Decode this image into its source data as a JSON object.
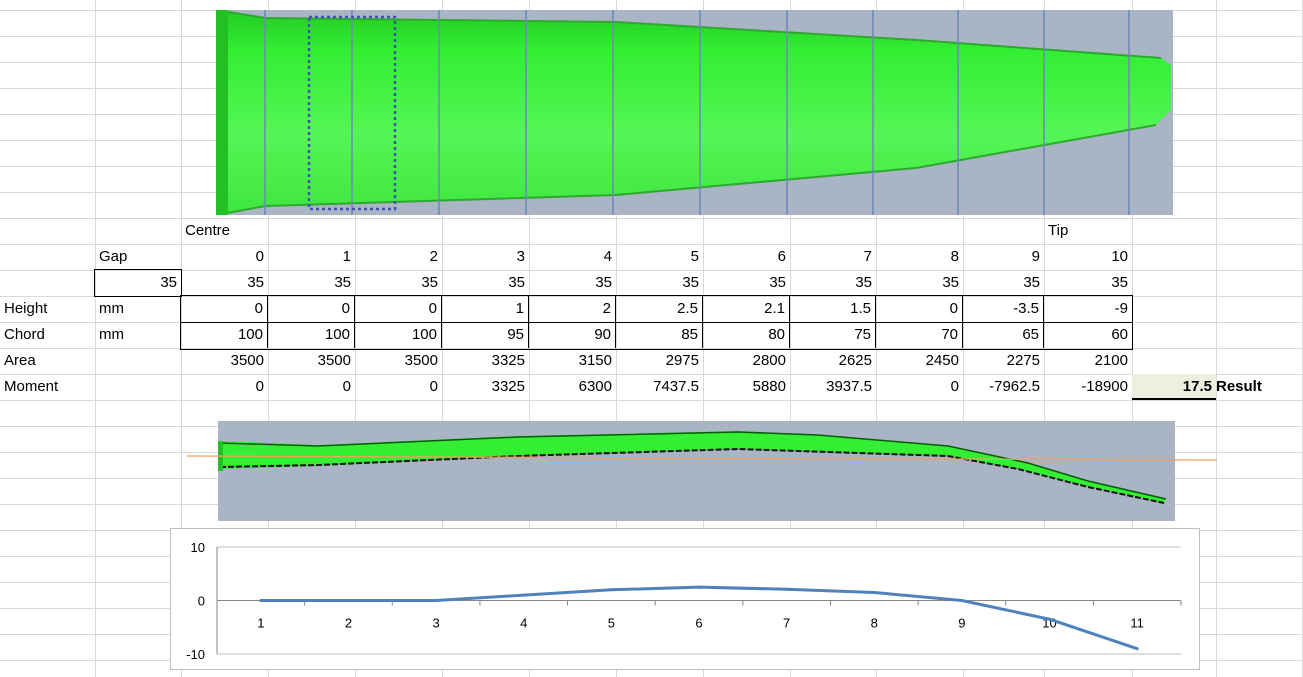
{
  "labels": {
    "centre": "Centre",
    "tip": "Tip",
    "gap": "Gap",
    "gap_value": "35",
    "height": "Height",
    "chord": "Chord",
    "area": "Area",
    "moment": "Moment",
    "unit_height": "mm",
    "unit_chord": "mm",
    "result_value": "17.5",
    "result_label": "Result"
  },
  "stations": [
    "0",
    "1",
    "2",
    "3",
    "4",
    "5",
    "6",
    "7",
    "8",
    "9",
    "10"
  ],
  "spacing": [
    "35",
    "35",
    "35",
    "35",
    "35",
    "35",
    "35",
    "35",
    "35",
    "35",
    "35"
  ],
  "height": [
    "0",
    "0",
    "0",
    "1",
    "2",
    "2.5",
    "2.1",
    "1.5",
    "0",
    "-3.5",
    "-9"
  ],
  "chord": [
    "100",
    "100",
    "100",
    "95",
    "90",
    "85",
    "80",
    "75",
    "70",
    "65",
    "60"
  ],
  "area": [
    "3500",
    "3500",
    "3500",
    "3325",
    "3150",
    "2975",
    "2800",
    "2625",
    "2450",
    "2275",
    "2100"
  ],
  "moment": [
    "0",
    "0",
    "0",
    "3325",
    "6300",
    "7437.5",
    "5880",
    "3937.5",
    "0",
    "-7962.5",
    "-18900"
  ],
  "colors": {
    "wing_green": "#33ee33",
    "render_bg": "#a9b4c4",
    "series_line": "#4f81bd",
    "result_bg": "#ebf1de",
    "reference_line": "#f0a060"
  },
  "chart_data": {
    "type": "line",
    "x": [
      1,
      2,
      3,
      4,
      5,
      6,
      7,
      8,
      9,
      10,
      11
    ],
    "categories": [
      "1",
      "2",
      "3",
      "4",
      "5",
      "6",
      "7",
      "8",
      "9",
      "10",
      "11"
    ],
    "series": [
      {
        "values": [
          0,
          0,
          0,
          1,
          2,
          2.5,
          2.1,
          1.5,
          0,
          -3.5,
          -9
        ]
      }
    ],
    "yticks": [
      "10",
      "0",
      "-10"
    ],
    "ylim": [
      -10,
      10
    ],
    "legend": "none",
    "grid": true
  }
}
